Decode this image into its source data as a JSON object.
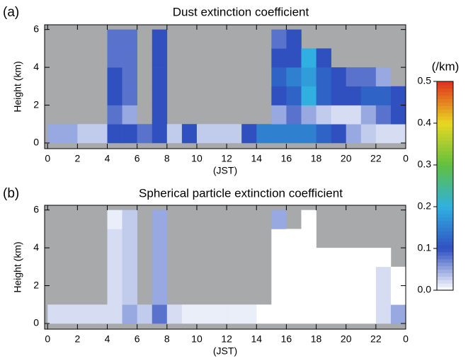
{
  "chart_data": [
    {
      "type": "heatmap",
      "panel_label": "(a)",
      "title": "Dust extinction coefficient",
      "x_label": "(JST)",
      "y_label": "Height (km)",
      "xlim": [
        -0.2,
        24
      ],
      "ylim": [
        -0.3,
        6.25
      ],
      "xticks": [
        0,
        2,
        4,
        6,
        8,
        10,
        12,
        14,
        16,
        18,
        20,
        22,
        {
          "value": 24,
          "label": "0"
        }
      ],
      "yticks": [
        0,
        2,
        4,
        6
      ],
      "x_edges": [
        0,
        1,
        2,
        3,
        4,
        5,
        6,
        7,
        8,
        9,
        10,
        11,
        12,
        13,
        14,
        15,
        16,
        17,
        18,
        19,
        20,
        21,
        22,
        23,
        24
      ],
      "y_edges": [
        0,
        1,
        2,
        3,
        4,
        5,
        6
      ],
      "z": [
        [
          0.05,
          null,
          null,
          null,
          null,
          null
        ],
        [
          0.05,
          null,
          null,
          null,
          null,
          null
        ],
        [
          0.03,
          null,
          null,
          null,
          null,
          null
        ],
        [
          0.03,
          null,
          null,
          null,
          null,
          null
        ],
        [
          0.1,
          0.08,
          0.1,
          0.1,
          0.08,
          0.08
        ],
        [
          0.1,
          0.05,
          0.08,
          0.08,
          0.08,
          0.08
        ],
        [
          0.08,
          null,
          null,
          null,
          null,
          null
        ],
        [
          0.1,
          0.1,
          0.1,
          0.1,
          0.1,
          0.1
        ],
        [
          0.03,
          null,
          null,
          null,
          null,
          null
        ],
        [
          0.1,
          null,
          null,
          null,
          null,
          null
        ],
        [
          0.03,
          null,
          null,
          null,
          null,
          null
        ],
        [
          0.03,
          null,
          null,
          null,
          null,
          null
        ],
        [
          0.03,
          null,
          null,
          null,
          null,
          null
        ],
        [
          0.1,
          null,
          null,
          null,
          null,
          null
        ],
        [
          0.15,
          null,
          null,
          null,
          null,
          null
        ],
        [
          0.15,
          0.05,
          0.1,
          0.12,
          0.1,
          0.08
        ],
        [
          0.15,
          0.08,
          0.12,
          0.15,
          0.1,
          0.1
        ],
        [
          0.15,
          0.05,
          0.2,
          0.18,
          0.2,
          null
        ],
        [
          0.12,
          0.03,
          0.12,
          0.12,
          0.1,
          null
        ],
        [
          0.1,
          0.02,
          0.1,
          0.1,
          null,
          null
        ],
        [
          0.05,
          0.02,
          0.1,
          0.08,
          null,
          null
        ],
        [
          0.03,
          0.05,
          0.12,
          0.08,
          null,
          null
        ],
        [
          0.02,
          0.08,
          0.12,
          0.05,
          null,
          null
        ],
        [
          0.02,
          0.1,
          0.1,
          null,
          null,
          null
        ]
      ]
    },
    {
      "type": "heatmap",
      "panel_label": "(b)",
      "title": "Spherical particle extinction coefficient",
      "x_label": "(JST)",
      "y_label": "Height (km)",
      "xlim": [
        -0.2,
        24
      ],
      "ylim": [
        -0.3,
        6.25
      ],
      "xticks": [
        0,
        2,
        4,
        6,
        8,
        10,
        12,
        14,
        16,
        18,
        20,
        22,
        {
          "value": 24,
          "label": "0"
        }
      ],
      "yticks": [
        0,
        2,
        4,
        6
      ],
      "x_edges": [
        0,
        1,
        2,
        3,
        4,
        5,
        6,
        7,
        8,
        9,
        10,
        11,
        12,
        13,
        14,
        15,
        16,
        17,
        18,
        19,
        20,
        21,
        22,
        23,
        24
      ],
      "y_edges": [
        0,
        1,
        2,
        3,
        4,
        5,
        6
      ],
      "z": [
        [
          0.02,
          null,
          null,
          null,
          null,
          null
        ],
        [
          0.02,
          null,
          null,
          null,
          null,
          null
        ],
        [
          0.02,
          null,
          null,
          null,
          null,
          null
        ],
        [
          0.02,
          null,
          null,
          null,
          null,
          null
        ],
        [
          0.02,
          0.02,
          0.02,
          0.02,
          0.02,
          0.01
        ],
        [
          0.05,
          0.03,
          0.03,
          0.03,
          0.03,
          0.03
        ],
        [
          0.03,
          null,
          null,
          null,
          null,
          null
        ],
        [
          0.08,
          0.05,
          0.05,
          0.05,
          0.05,
          0.05
        ],
        [
          0.02,
          null,
          null,
          null,
          null,
          null
        ],
        [
          0.01,
          null,
          null,
          null,
          null,
          null
        ],
        [
          0.01,
          null,
          null,
          null,
          null,
          null
        ],
        [
          0.01,
          null,
          null,
          null,
          null,
          null
        ],
        [
          0.01,
          null,
          null,
          null,
          null,
          null
        ],
        [
          0.01,
          null,
          null,
          null,
          null,
          null
        ],
        [
          0,
          null,
          null,
          null,
          null,
          null
        ],
        [
          0,
          0,
          0,
          0,
          0,
          0.05
        ],
        [
          0,
          0,
          0,
          0,
          0,
          null
        ],
        [
          0,
          0,
          0,
          0,
          0,
          0
        ],
        [
          0,
          0,
          0,
          0,
          null,
          null
        ],
        [
          0,
          0,
          0,
          0,
          null,
          null
        ],
        [
          0,
          0,
          0,
          0,
          null,
          null
        ],
        [
          0,
          0,
          0,
          0,
          null,
          null
        ],
        [
          0.02,
          0.02,
          0.02,
          0,
          null,
          null
        ],
        [
          0.05,
          0,
          0,
          null,
          null,
          null
        ]
      ]
    },
    {
      "type": "colorbar",
      "label": "(/km)",
      "zlim": [
        0,
        0.5
      ],
      "zticks": [
        {
          "value": 0,
          "label": "0.0"
        },
        0.1,
        0.2,
        0.3,
        0.4,
        0.5
      ],
      "colors": [
        "#ffffff",
        "#3050c0",
        "#30b0e0",
        "#60c040",
        "#e8d820",
        "#e03020"
      ]
    }
  ]
}
